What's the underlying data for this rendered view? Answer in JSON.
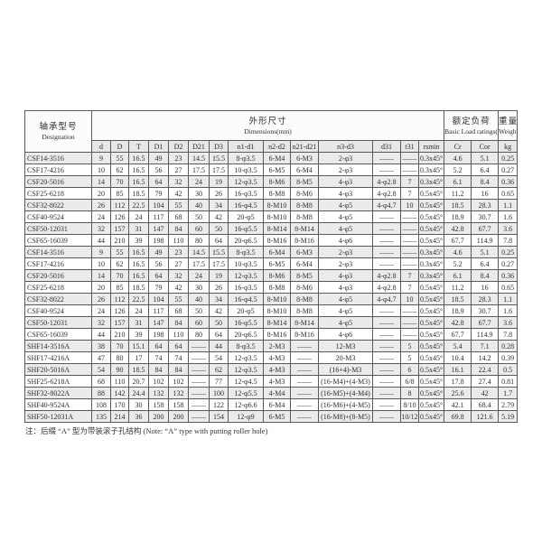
{
  "table": {
    "header": {
      "designation_zh": "轴承型号",
      "designation_en": "Designation",
      "dimensions_zh": "外形尺寸",
      "dimensions_en": "Dimensions(mm)",
      "load_zh": "额定负荷",
      "load_en": "Basic Load ratings(KN)",
      "weight_zh": "重量",
      "weight_en": "Weight",
      "columns": [
        "d",
        "D",
        "T",
        "D1",
        "D2",
        "D21",
        "D3",
        "n1-d1",
        "n2-d2",
        "n21-d21",
        "n3-d3",
        "d31",
        "t31",
        "rsmin",
        "Cr",
        "Cor",
        "kg"
      ]
    },
    "rows": [
      [
        "CSF14-3516",
        "9",
        "55",
        "16.5",
        "49",
        "23",
        "14.5",
        "15.5",
        "8-φ3.5",
        "6-M4",
        "6-M3",
        "2-φ3",
        "——",
        "——",
        "0.3x45°",
        "4.6",
        "5.1",
        "0.25"
      ],
      [
        "CSF17-4216",
        "10",
        "62",
        "16.5",
        "56",
        "27",
        "17.5",
        "17.5",
        "10-φ3.5",
        "6-M5",
        "6-M4",
        "2-φ3",
        "——",
        "——",
        "0.3x45°",
        "5.2",
        "6.4",
        "0.27"
      ],
      [
        "CSF20-5016",
        "14",
        "70",
        "16.5",
        "64",
        "32",
        "24",
        "19",
        "12-φ3.5",
        "8-M6",
        "8-M5",
        "4-φ3",
        "4-φ2.8",
        "7",
        "0.3x45°",
        "6.1",
        "8.4",
        "0.36"
      ],
      [
        "CSF25-6218",
        "20",
        "85",
        "18.5",
        "79",
        "42",
        "30",
        "26",
        "16-φ3.5",
        "8-M8",
        "8-M6",
        "4-φ3",
        "4-φ2.8",
        "7",
        "0.5x45°",
        "11.2",
        "16",
        "0.65"
      ],
      [
        "CSF32-8022",
        "26",
        "112",
        "22.5",
        "104",
        "55",
        "40",
        "34",
        "16-φ4.5",
        "8-M10",
        "8-M8",
        "4-φ5",
        "4-φ4.7",
        "10",
        "0.5x45°",
        "18.5",
        "28.3",
        "1.1"
      ],
      [
        "CSF40-9524",
        "24",
        "126",
        "24",
        "117",
        "68",
        "50",
        "42",
        "20-φ5",
        "8-M10",
        "8-M8",
        "4-φ5",
        "——",
        "——",
        "0.5x45°",
        "18.9",
        "30.7",
        "1.6"
      ],
      [
        "CSF50-12031",
        "32",
        "157",
        "31",
        "147",
        "84",
        "60",
        "50",
        "16-φ5.5",
        "8-M14",
        "8-M14",
        "4-φ5",
        "——",
        "——",
        "0.5x45°",
        "42.8",
        "67.7",
        "3.6"
      ],
      [
        "CSF65-16039",
        "44",
        "210",
        "39",
        "198",
        "110",
        "80",
        "64",
        "20-φ6.5",
        "8-M16",
        "8-M16",
        "4-φ6",
        "——",
        "——",
        "0.5x45°",
        "67.7",
        "114.9",
        "7.8"
      ],
      [
        "CSF14-3516",
        "9",
        "55",
        "16.5",
        "49",
        "23",
        "14.5",
        "15.5",
        "8-φ3.5",
        "6-M4",
        "6-M3",
        "2-φ3",
        "——",
        "——",
        "0.3x45°",
        "4.6",
        "5.1",
        "0.25"
      ],
      [
        "CSF17-4216",
        "10",
        "62",
        "16.5",
        "56",
        "27",
        "17.5",
        "17.5",
        "10-φ3.5",
        "6-M5",
        "6-M4",
        "2-φ3",
        "——",
        "——",
        "0.3x45°",
        "5.2",
        "6.4",
        "0.27"
      ],
      [
        "CSF20-5016",
        "14",
        "70",
        "16.5",
        "64",
        "32",
        "24",
        "19",
        "12-φ3.5",
        "8-M6",
        "8-M5",
        "4-φ3",
        "4-φ2.8",
        "7",
        "0.3x45°",
        "6.1",
        "8.4",
        "0.36"
      ],
      [
        "CSF25-6218",
        "20",
        "85",
        "18.5",
        "79",
        "42",
        "30",
        "26",
        "16-φ3.5",
        "8-M8",
        "8-M6",
        "4-φ3",
        "4-φ2.8",
        "7",
        "0.5x45°",
        "11.2",
        "16",
        "0.65"
      ],
      [
        "CSF32-8022",
        "26",
        "112",
        "22.5",
        "104",
        "55",
        "40",
        "34",
        "16-φ4.5",
        "8-M10",
        "8-M8",
        "4-φ5",
        "4-φ4.7",
        "10",
        "0.5x45°",
        "18.5",
        "28.3",
        "1.1"
      ],
      [
        "CSF40-9524",
        "24",
        "126",
        "24",
        "117",
        "68",
        "50",
        "42",
        "20-φ5",
        "8-M10",
        "8-M8",
        "4-φ5",
        "——",
        "——",
        "0.5x45°",
        "18.9",
        "30.7",
        "1.6"
      ],
      [
        "CSF50-12031",
        "32",
        "157",
        "31",
        "147",
        "84",
        "60",
        "50",
        "16-φ5.5",
        "8-M14",
        "8-M14",
        "4-φ5",
        "——",
        "——",
        "0.5x45°",
        "42.8",
        "67.7",
        "3.6"
      ],
      [
        "CSF65-16039",
        "44",
        "210",
        "39",
        "198",
        "110",
        "80",
        "64",
        "20-φ6.5",
        "8-M16",
        "8-M16",
        "4-φ6",
        "——",
        "——",
        "0.5x45°",
        "67.7",
        "114.9",
        "7.8"
      ],
      [
        "SHF14-3516A",
        "38",
        "70",
        "15.1",
        "64",
        "64",
        "——",
        "44",
        "8-φ3.5",
        "2-M3",
        "——",
        "12-M3",
        "——",
        "5",
        "0.5x45°",
        "5.4",
        "7.1",
        "0.28"
      ],
      [
        "SHF17-4216A",
        "47",
        "80",
        "17",
        "74",
        "74",
        "——",
        "54",
        "12-φ3.5",
        "4-M3",
        "——",
        "20-M3",
        "——",
        "5",
        "0.5x45°",
        "10.4",
        "14.2",
        "0.39"
      ],
      [
        "SHF20-5016A",
        "54",
        "90",
        "18.5",
        "84",
        "84",
        "——",
        "62",
        "12-φ3.5",
        "4-M3",
        "——",
        "(16+4)-M3",
        "——",
        "6",
        "0.5x45°",
        "16.1",
        "22.4",
        "0.5"
      ],
      [
        "SHF25-6218A",
        "68",
        "110",
        "20.7",
        "102",
        "102",
        "——",
        "77",
        "12-φ4.5",
        "4-M3",
        "——",
        "(16-M4)+(4-M3)",
        "——",
        "6/8",
        "0.5x45°",
        "17.8",
        "27.4",
        "0.81"
      ],
      [
        "SHF32-8022A",
        "88",
        "142",
        "24.4",
        "132",
        "132",
        "——",
        "100",
        "12-φ5.5",
        "4-M4",
        "——",
        "(16-M5)+(4-M4)",
        "——",
        "8",
        "0.5x45°",
        "25.6",
        "42",
        "1.7"
      ],
      [
        "SHF40-9524A",
        "108",
        "170",
        "30",
        "158",
        "158",
        "——",
        "122",
        "12-φ6.6",
        "6-M4",
        "——",
        "(16-M6)+(4-M5)",
        "——",
        "8/10",
        "0.5x45°",
        "42.1",
        "68.4",
        "2.79"
      ],
      [
        "SHF50-12031A",
        "135",
        "214",
        "36",
        "200",
        "200",
        "——",
        "154",
        "12-φ9",
        "6-M5",
        "——",
        "(16-M8)+(8-M5)",
        "——",
        "10/12",
        "0.5x45°",
        "69.8",
        "121.6",
        "5.19"
      ]
    ]
  },
  "note": "注：后缀 “A” 型为带装滚子孔结构 (Note: “A” type with putting roller hole)"
}
